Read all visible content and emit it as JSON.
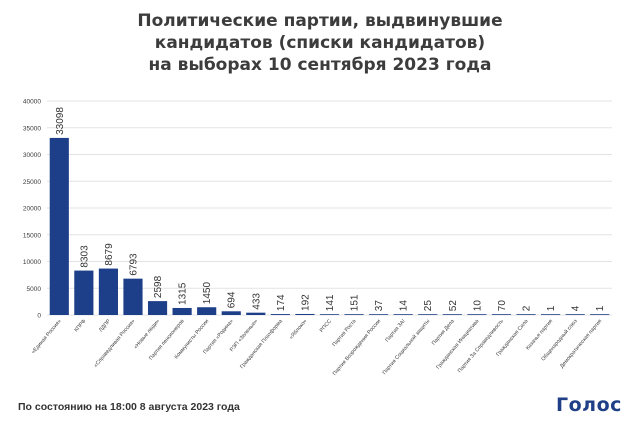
{
  "header": {
    "title_lines": [
      "Политические партии, выдвинувшие",
      "кандидатов (списки кандидатов)",
      "на выборах 10 сентября 2023 года"
    ]
  },
  "footer": {
    "note": "По состоянию на 18:00 8 августа 2023 года",
    "logo_text": "Голос"
  },
  "colors": {
    "bar": "#1d3f89",
    "grid": "#e3e3e3",
    "text": "#3a3a3a"
  },
  "chart_data": {
    "type": "bar",
    "title": "Политические партии, выдвинувшие кандидатов (списки кандидатов) на выборах 10 сентября 2023 года",
    "xlabel": "",
    "ylabel": "",
    "ylim": [
      0,
      40000
    ],
    "yticks": [
      0,
      5000,
      10000,
      15000,
      20000,
      25000,
      30000,
      35000,
      40000
    ],
    "ytick_labels": [
      "0",
      "5000",
      "10000",
      "15000",
      "20000",
      "25000",
      "30000",
      "35000",
      "40000"
    ],
    "grid": true,
    "legend": "none",
    "categories": [
      "«Единая Россия»",
      "КПРФ",
      "ЛДПР",
      "«Справедливая Россия»",
      "«Новые люди»",
      "Партия пенсионеров",
      "Коммунисты России",
      "Партия «Родина»",
      "РЭП «Зеленые»",
      "Гражданская Платформа",
      "«Яблоко»",
      "РПСС",
      "Партия Роста",
      "Партия Возрождения России",
      "Партия ЗА!",
      "Партия Социальной защиты",
      "Партия Дела",
      "Гражданская Инициатива",
      "Партия За Справедливость",
      "Гражданская Сила",
      "Казачья партия",
      "Общенародный союз",
      "Демократическая партия"
    ],
    "values": [
      33098,
      8303,
      8679,
      6793,
      2598,
      1315,
      1450,
      694,
      433,
      174,
      192,
      141,
      151,
      37,
      14,
      25,
      52,
      10,
      70,
      2,
      1,
      4,
      1
    ],
    "value_labels": [
      "33098",
      "8303",
      "8679",
      "6793",
      "2598",
      "1315",
      "1450",
      "694",
      "433",
      "174",
      "192",
      "141",
      "151",
      "37",
      "14",
      "25",
      "52",
      "10",
      "70",
      "2",
      "1",
      "4",
      "1"
    ]
  }
}
